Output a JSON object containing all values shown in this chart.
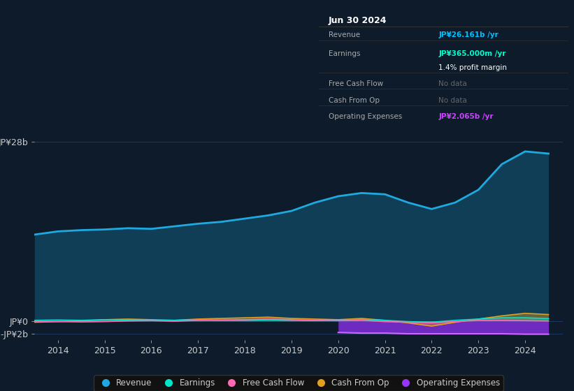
{
  "bg_color": "#0d1b2a",
  "plot_bg_color": "#0d1b2a",
  "grid_color": "#1e3a5f",
  "text_color": "#cccccc",
  "info_box": {
    "title": "Jun 30 2024",
    "rows": [
      {
        "label": "Revenue",
        "value": "JP¥26.161b /yr",
        "value_color": "#00bfff"
      },
      {
        "label": "Earnings",
        "value": "JP¥365.000m /yr",
        "value_color": "#00ffcc"
      },
      {
        "label": "",
        "value": "1.4% profit margin",
        "value_color": "#ffffff"
      },
      {
        "label": "Free Cash Flow",
        "value": "No data",
        "value_color": "#666666"
      },
      {
        "label": "Cash From Op",
        "value": "No data",
        "value_color": "#666666"
      },
      {
        "label": "Operating Expenses",
        "value": "JP¥2.065b /yr",
        "value_color": "#cc44ff"
      }
    ]
  },
  "years": [
    2013.5,
    2014.0,
    2014.5,
    2015.0,
    2015.5,
    2016.0,
    2016.5,
    2017.0,
    2017.5,
    2018.0,
    2018.5,
    2019.0,
    2019.5,
    2020.0,
    2020.5,
    2021.0,
    2021.5,
    2022.0,
    2022.5,
    2023.0,
    2023.5,
    2024.0,
    2024.5
  ],
  "revenue": [
    13.5,
    14.0,
    14.2,
    14.3,
    14.5,
    14.4,
    14.8,
    15.2,
    15.5,
    16.0,
    16.5,
    17.2,
    18.5,
    19.5,
    20.0,
    19.8,
    18.5,
    17.5,
    18.5,
    20.5,
    24.5,
    26.5,
    26.161
  ],
  "earnings": [
    0.1,
    0.15,
    0.1,
    0.2,
    0.15,
    0.1,
    0.1,
    0.2,
    0.1,
    0.1,
    0.2,
    0.1,
    0.05,
    0.1,
    0.2,
    0.1,
    -0.1,
    -0.2,
    0.1,
    0.3,
    0.5,
    0.5,
    0.365
  ],
  "free_cash_flow": [
    -0.05,
    -0.1,
    -0.15,
    -0.1,
    0.0,
    0.05,
    -0.05,
    0.1,
    0.15,
    0.2,
    0.3,
    0.2,
    0.1,
    0.05,
    0.1,
    -0.1,
    -0.2,
    -0.3,
    -0.1,
    0.1,
    0.1,
    0.05,
    0.0
  ],
  "cash_from_op": [
    -0.2,
    -0.1,
    0.0,
    0.2,
    0.3,
    0.2,
    0.1,
    0.3,
    0.4,
    0.5,
    0.6,
    0.4,
    0.3,
    0.2,
    0.4,
    0.1,
    -0.3,
    -0.8,
    -0.2,
    0.3,
    0.8,
    1.2,
    1.0
  ],
  "op_expenses": [
    null,
    null,
    null,
    null,
    null,
    null,
    null,
    null,
    null,
    null,
    null,
    null,
    null,
    -1.8,
    -1.9,
    -1.9,
    -2.0,
    -2.0,
    -2.0,
    -2.0,
    -2.0,
    -2.065,
    -2.065
  ],
  "ylim": [
    -3.0,
    30.0
  ],
  "yticks": [
    -2,
    0,
    28
  ],
  "ytick_labels": [
    "-JP¥2b",
    "JP¥0",
    "JP¥28b"
  ],
  "xticks": [
    2014,
    2015,
    2016,
    2017,
    2018,
    2019,
    2020,
    2021,
    2022,
    2023,
    2024
  ],
  "revenue_color": "#1eaae0",
  "earnings_color": "#00e5cc",
  "fcf_color": "#ff69b4",
  "cashop_color": "#e0a020",
  "opex_color": "#9933ff",
  "legend_labels": [
    "Revenue",
    "Earnings",
    "Free Cash Flow",
    "Cash From Op",
    "Operating Expenses"
  ],
  "legend_colors": [
    "#1eaae0",
    "#00e5cc",
    "#ff69b4",
    "#e0a020",
    "#9933ff"
  ]
}
